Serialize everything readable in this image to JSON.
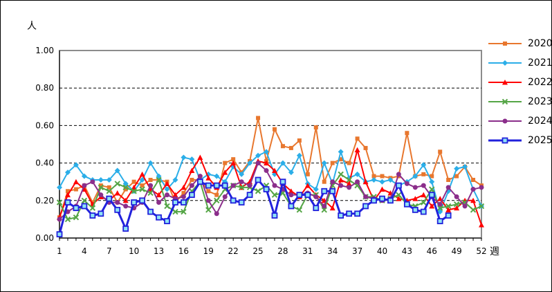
{
  "chart_data": {
    "type": "line",
    "title": "",
    "xlabel": "週",
    "ylabel": "人",
    "x_range": [
      1,
      52
    ],
    "x_unit": "week",
    "x_tick_labels": [
      1,
      4,
      7,
      10,
      13,
      16,
      19,
      22,
      25,
      28,
      31,
      34,
      37,
      40,
      43,
      46,
      49,
      52
    ],
    "ylim": [
      0,
      1
    ],
    "yticks": [
      0,
      0.2,
      0.4,
      0.6,
      0.8,
      1.0
    ],
    "ytick_labels": [
      "0.00",
      "0.20",
      "0.40",
      "0.60",
      "0.80",
      "1.00"
    ],
    "grid": "horizontal-dashed",
    "legend_position": "right-outside",
    "series": [
      {
        "name": "2020",
        "color": "#E8772E",
        "marker": "square",
        "values": [
          0.11,
          0.25,
          0.26,
          0.28,
          0.19,
          0.28,
          0.27,
          0.19,
          0.26,
          0.3,
          0.28,
          0.31,
          0.31,
          0.3,
          0.19,
          0.24,
          0.31,
          0.31,
          0.25,
          0.23,
          0.4,
          0.42,
          0.35,
          0.41,
          0.64,
          0.41,
          0.58,
          0.49,
          0.48,
          0.52,
          0.34,
          0.59,
          0.3,
          0.4,
          0.42,
          0.4,
          0.53,
          0.48,
          0.33,
          0.33,
          0.32,
          0.33,
          0.56,
          0.33,
          0.34,
          0.33,
          0.46,
          0.31,
          0.33,
          0.38,
          0.31,
          0.28
        ]
      },
      {
        "name": "2021",
        "color": "#2BAEE8",
        "marker": "diamond",
        "values": [
          0.27,
          0.35,
          0.39,
          0.33,
          0.31,
          0.31,
          0.31,
          0.36,
          0.29,
          0.25,
          0.31,
          0.4,
          0.33,
          0.26,
          0.31,
          0.43,
          0.42,
          0.31,
          0.34,
          0.33,
          0.3,
          0.38,
          0.34,
          0.4,
          0.44,
          0.46,
          0.34,
          0.4,
          0.35,
          0.44,
          0.29,
          0.26,
          0.4,
          0.29,
          0.46,
          0.32,
          0.34,
          0.3,
          0.31,
          0.3,
          0.31,
          0.28,
          0.3,
          0.33,
          0.39,
          0.3,
          0.14,
          0.25,
          0.37,
          0.38,
          0.26,
          0.17
        ]
      },
      {
        "name": "2022",
        "color": "#FF0000",
        "marker": "triangle",
        "values": [
          0.11,
          0.23,
          0.3,
          0.26,
          0.18,
          0.22,
          0.2,
          0.24,
          0.2,
          0.27,
          0.34,
          0.26,
          0.23,
          0.29,
          0.23,
          0.27,
          0.36,
          0.43,
          0.32,
          0.27,
          0.35,
          0.4,
          0.27,
          0.3,
          0.41,
          0.4,
          0.36,
          0.29,
          0.25,
          0.22,
          0.28,
          0.23,
          0.2,
          0.16,
          0.31,
          0.29,
          0.47,
          0.3,
          0.2,
          0.26,
          0.24,
          0.21,
          0.2,
          0.21,
          0.23,
          0.17,
          0.21,
          0.15,
          0.16,
          0.2,
          0.2,
          0.07
        ]
      },
      {
        "name": "2023",
        "color": "#55A546",
        "marker": "x",
        "values": [
          0.19,
          0.1,
          0.11,
          0.2,
          0.16,
          0.27,
          0.25,
          0.29,
          0.27,
          0.25,
          0.26,
          0.24,
          0.31,
          0.17,
          0.14,
          0.14,
          0.25,
          0.3,
          0.15,
          0.2,
          0.26,
          0.28,
          0.27,
          0.27,
          0.25,
          0.28,
          0.23,
          0.24,
          0.17,
          0.15,
          0.23,
          0.23,
          0.15,
          0.28,
          0.34,
          0.31,
          0.28,
          0.22,
          0.22,
          0.2,
          0.21,
          0.23,
          0.18,
          0.17,
          0.19,
          0.26,
          0.16,
          0.17,
          0.18,
          0.19,
          0.15,
          0.17
        ]
      },
      {
        "name": "2024",
        "color": "#8B2E8B",
        "marker": "circle",
        "values": [
          0.1,
          0.14,
          0.17,
          0.28,
          0.3,
          0.23,
          0.19,
          0.19,
          0.17,
          0.16,
          0.19,
          0.28,
          0.19,
          0.23,
          0.21,
          0.22,
          0.28,
          0.33,
          0.2,
          0.13,
          0.22,
          0.28,
          0.3,
          0.28,
          0.4,
          0.36,
          0.28,
          0.26,
          0.23,
          0.23,
          0.24,
          0.22,
          0.17,
          0.3,
          0.28,
          0.27,
          0.3,
          0.22,
          0.21,
          0.2,
          0.21,
          0.34,
          0.29,
          0.27,
          0.28,
          0.22,
          0.18,
          0.27,
          0.22,
          0.17,
          0.26,
          0.27
        ]
      },
      {
        "name": "2025",
        "color": "#2121DC",
        "marker": "open-square",
        "marker_fill": "#8FE2F4",
        "line_width": 3,
        "values": [
          0.02,
          0.19,
          0.16,
          0.17,
          0.12,
          0.13,
          0.21,
          0.15,
          0.05,
          0.19,
          0.2,
          0.14,
          0.11,
          0.09,
          0.19,
          0.19,
          0.23,
          0.3,
          0.28,
          0.28,
          0.28,
          0.2,
          0.19,
          0.23,
          0.31,
          0.26,
          0.12,
          0.3,
          0.17,
          0.23,
          0.23,
          0.16,
          0.25,
          0.25,
          0.12,
          0.13,
          0.13,
          0.17,
          0.2,
          0.21,
          0.2,
          0.28,
          0.18,
          0.15,
          0.14,
          0.23,
          0.09,
          0.12
        ]
      }
    ]
  }
}
